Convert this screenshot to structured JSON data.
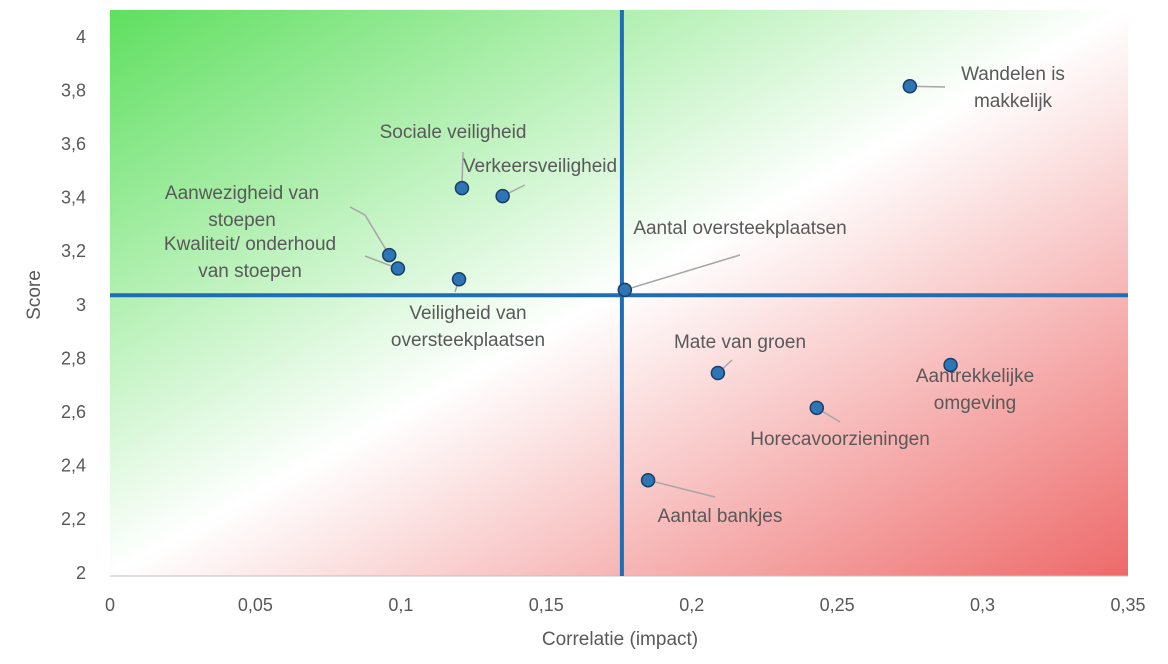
{
  "chart_data": {
    "type": "scatter",
    "x_label": "Correlatie (impact)",
    "y_label": "Score",
    "xlim": [
      0,
      0.35
    ],
    "ylim": [
      2,
      4
    ],
    "xticks": [
      0,
      {
        "value": 0.05,
        "label": "0,05"
      },
      {
        "value": 0.1,
        "label": "0,1"
      },
      {
        "value": 0.15,
        "label": "0,15"
      },
      {
        "value": 0.2,
        "label": "0,2"
      },
      {
        "value": 0.25,
        "label": "0,25"
      },
      {
        "value": 0.3,
        "label": "0,3"
      },
      {
        "value": 0.35,
        "label": "0,35"
      }
    ],
    "yticks": [
      2,
      {
        "value": 2.2,
        "label": "2,2"
      },
      {
        "value": 2.4,
        "label": "2,4"
      },
      {
        "value": 2.6,
        "label": "2,6"
      },
      {
        "value": 2.8,
        "label": "2,8"
      },
      3,
      {
        "value": 3.2,
        "label": "3,2"
      },
      {
        "value": 3.4,
        "label": "3,4"
      },
      {
        "value": 3.6,
        "label": "3,6"
      },
      {
        "value": 3.8,
        "label": "3,8"
      },
      4
    ],
    "color": "#2e75b6",
    "quadrant_color": "#1f6db5",
    "quadrant_x": 0.176,
    "quadrant_y": 3.04,
    "labels": [
      [
        "Wandelen is",
        "makkelijk"
      ],
      [
        "Sociale veiligheid"
      ],
      [
        "Verkeersveiligheid"
      ],
      [
        "Aanwezigheid van",
        "stoepen"
      ],
      [
        "Kwaliteit/ onderhoud",
        "van stoepen"
      ],
      [
        "Veiligheid van",
        "oversteekplaatsen"
      ],
      [
        "Aantal oversteekplaatsen"
      ],
      [
        "Mate van groen"
      ],
      [
        "Aantrekkelijke",
        "omgeving"
      ],
      [
        "Horecavoorzieningen"
      ],
      [
        "Aantal bankjes"
      ]
    ],
    "x": [
      0.275,
      0.121,
      0.135,
      0.096,
      0.099,
      0.12,
      0.177,
      0.209,
      0.289,
      0.243,
      0.185
    ],
    "values": [
      3.82,
      3.44,
      3.41,
      3.19,
      3.14,
      3.1,
      3.06,
      2.75,
      2.78,
      2.62,
      2.35
    ]
  }
}
